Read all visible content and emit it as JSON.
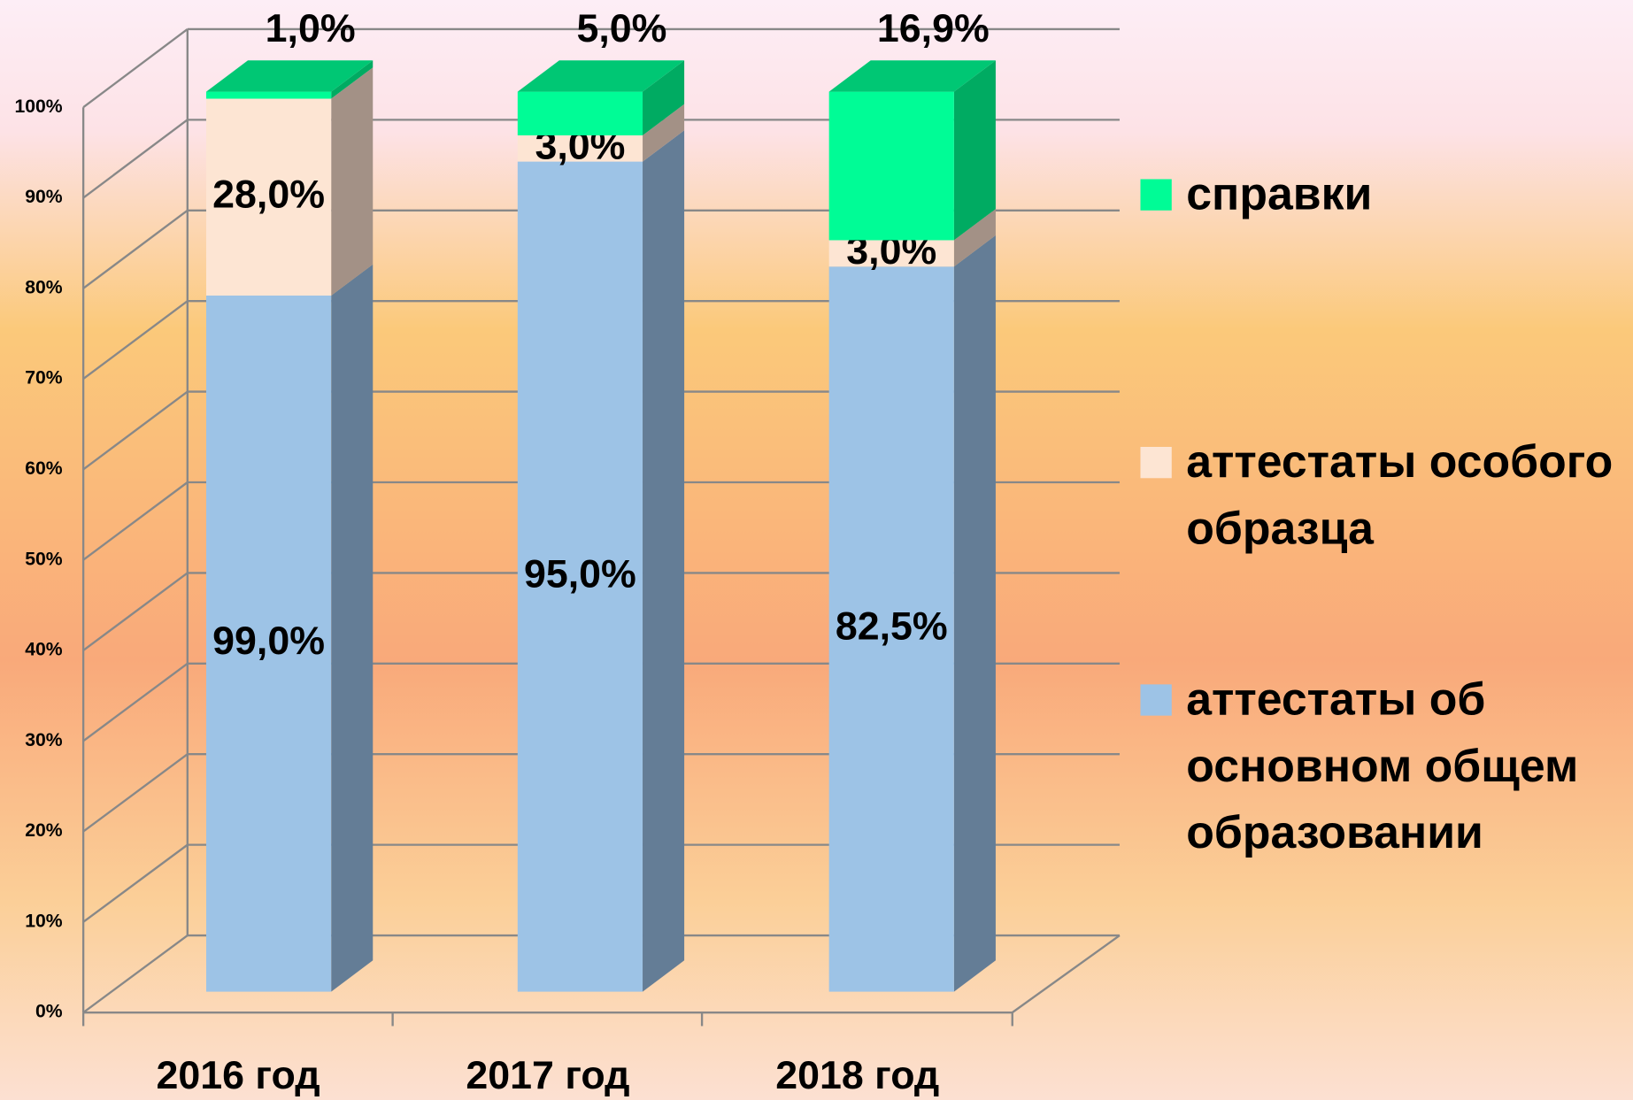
{
  "chart_data": {
    "type": "bar3d_percent_stacked",
    "categories": [
      "2016 год",
      "2017 год",
      "2018 год"
    ],
    "series": [
      {
        "name": "аттестаты об основном общем образовании",
        "color": "#9dc3e6",
        "side_color": "#647d96",
        "top_color": "#7fa6cc",
        "values": [
          99.0,
          95.0,
          82.5
        ],
        "value_labels": [
          "99,0%",
          "95,0%",
          "82,5%"
        ]
      },
      {
        "name": "аттестаты особого образца",
        "color": "#fde5d3",
        "side_color": "#a39186",
        "top_color": "#e6cdb9",
        "values": [
          28.0,
          3.0,
          3.0
        ],
        "value_labels": [
          "28,0%",
          "3,0%",
          "3,0%"
        ]
      },
      {
        "name": "справки",
        "color": "#00fc96",
        "side_color": "#00ab62",
        "top_color": "#00c774",
        "values": [
          1.0,
          5.0,
          16.9
        ],
        "value_labels": [
          "1,0%",
          "5,0%",
          "16,9%"
        ]
      }
    ],
    "percent_stacked": true,
    "ylim": [
      0,
      100
    ],
    "yticks": [
      {
        "value": 0,
        "label": "0%"
      },
      {
        "value": 10,
        "label": "10%"
      },
      {
        "value": 20,
        "label": "20%"
      },
      {
        "value": 30,
        "label": "30%"
      },
      {
        "value": 40,
        "label": "40%"
      },
      {
        "value": 50,
        "label": "50%"
      },
      {
        "value": 60,
        "label": "60%"
      },
      {
        "value": 70,
        "label": "70%"
      },
      {
        "value": 80,
        "label": "80%"
      },
      {
        "value": 90,
        "label": "90%"
      },
      {
        "value": 100,
        "label": "100%"
      }
    ],
    "grid": true,
    "legend": "right"
  }
}
